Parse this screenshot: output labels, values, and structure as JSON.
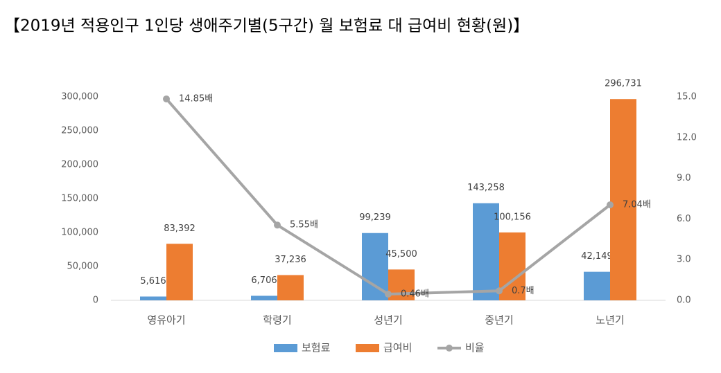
{
  "chart_data": {
    "type": "bar",
    "title": "【2019년 적용인구 1인당 생애주기별(5구간) 월 보험료 대 급여비 현황(원)】",
    "categories": [
      "영유아기",
      "학령기",
      "성년기",
      "중년기",
      "노년기"
    ],
    "series": [
      {
        "name": "보험료",
        "type": "bar",
        "color": "#5b9bd5",
        "values": [
          5616,
          6706,
          99239,
          143258,
          42149
        ],
        "value_labels": [
          "5,616",
          "6,706",
          "99,239",
          "143,258",
          "42,149"
        ]
      },
      {
        "name": "급여비",
        "type": "bar",
        "color": "#ed7d31",
        "values": [
          83392,
          37236,
          45500,
          100156,
          296731
        ],
        "value_labels": [
          "83,392",
          "37,236",
          "45,500",
          "100,156",
          "296,731"
        ]
      },
      {
        "name": "비율",
        "type": "line",
        "axis": "y2",
        "color": "#a5a5a5",
        "values": [
          14.85,
          5.55,
          0.46,
          0.7,
          7.04
        ],
        "value_labels": [
          "14.85배",
          "5.55배",
          "0.46배",
          "0.7배",
          "7.04배"
        ]
      }
    ],
    "ylim": [
      0,
      300000
    ],
    "yticks": [
      0,
      {
        "value": 50000,
        "label": "50,000"
      },
      {
        "value": 100000,
        "label": "100,000"
      },
      {
        "value": 150000,
        "label": "150,000"
      },
      {
        "value": 200000,
        "label": "200,000"
      },
      {
        "value": 250000,
        "label": "250,000"
      },
      {
        "value": 300000,
        "label": "300,000"
      }
    ],
    "y2lim": [
      0,
      15
    ],
    "y2ticks": [
      {
        "value": 0,
        "label": "0.0"
      },
      {
        "value": 3,
        "label": "3.0"
      },
      {
        "value": 6,
        "label": "6.0"
      },
      {
        "value": 9,
        "label": "9.0"
      },
      {
        "value": 12,
        "label": "12.0"
      },
      {
        "value": 15,
        "label": "15.0"
      }
    ],
    "legend": "bottom"
  }
}
